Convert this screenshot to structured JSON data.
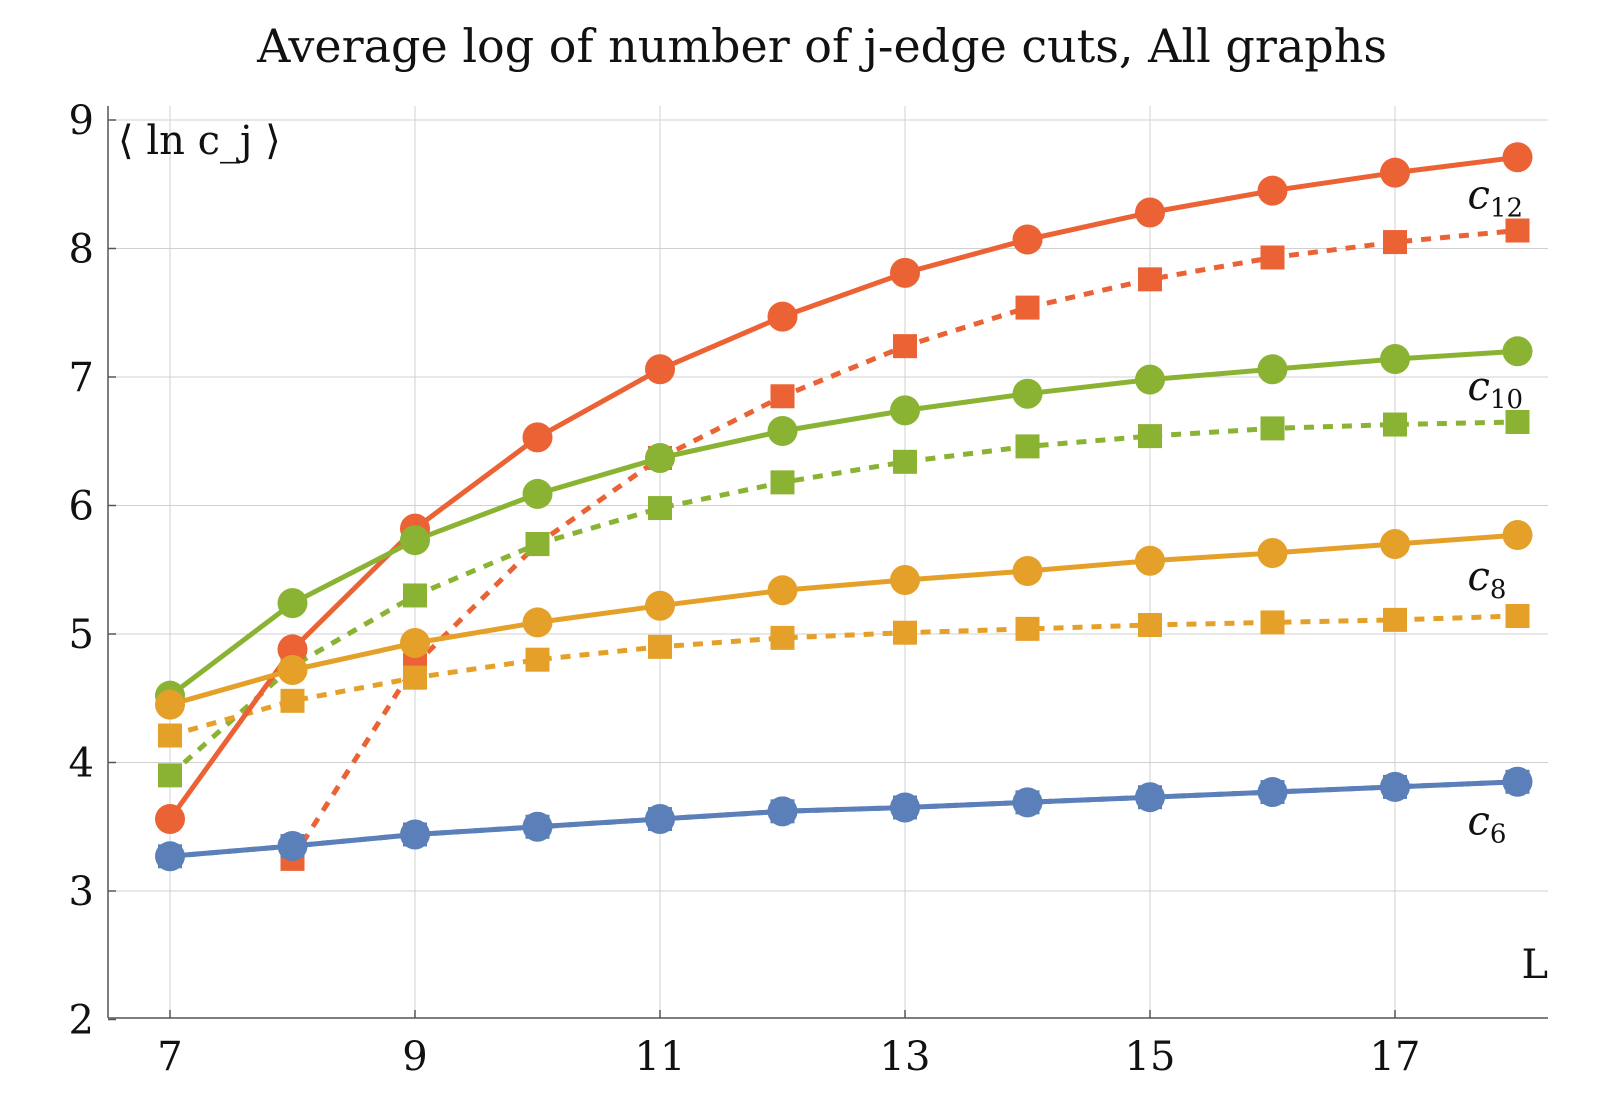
{
  "chart_data": {
    "type": "line",
    "title": "Average log of number of j-edge cuts, All graphs",
    "ylabel": "⟨ ln c_j ⟩",
    "xlabel": "L",
    "x": [
      7,
      8,
      9,
      10,
      11,
      12,
      13,
      14,
      15,
      16,
      17,
      18
    ],
    "xlim": [
      6.5,
      18.5
    ],
    "ylim": [
      2,
      9
    ],
    "xticks": [
      7,
      9,
      11,
      13,
      15,
      17
    ],
    "yticks": [
      2,
      3,
      4,
      5,
      6,
      7,
      8,
      9
    ],
    "grid": true,
    "colors": {
      "c6": "#5b7fb9",
      "c8": "#e4a029",
      "c10": "#8ab334",
      "c12": "#eb6235"
    },
    "series": [
      {
        "key": "c12",
        "line": "solid",
        "marker": "circle",
        "values": [
          3.56,
          4.88,
          5.82,
          6.53,
          7.06,
          7.47,
          7.81,
          8.07,
          8.28,
          8.45,
          8.59,
          8.71
        ]
      },
      {
        "key": "c12",
        "line": "dashed",
        "marker": "square",
        "values": [
          null,
          3.25,
          4.76,
          5.7,
          6.37,
          6.85,
          7.24,
          7.54,
          7.76,
          7.93,
          8.05,
          8.14
        ]
      },
      {
        "key": "c10",
        "line": "solid",
        "marker": "circle",
        "values": [
          4.52,
          5.24,
          5.73,
          6.09,
          6.37,
          6.58,
          6.74,
          6.87,
          6.98,
          7.06,
          7.14,
          7.2
        ]
      },
      {
        "key": "c10",
        "line": "dashed",
        "marker": "square",
        "values": [
          3.9,
          4.75,
          5.3,
          5.7,
          5.98,
          6.18,
          6.34,
          6.46,
          6.54,
          6.6,
          6.63,
          6.65
        ]
      },
      {
        "key": "c8",
        "line": "solid",
        "marker": "circle",
        "values": [
          4.45,
          4.72,
          4.93,
          5.09,
          5.22,
          5.34,
          5.42,
          5.49,
          5.57,
          5.63,
          5.7,
          5.77
        ]
      },
      {
        "key": "c8",
        "line": "dashed",
        "marker": "square",
        "values": [
          4.21,
          4.48,
          4.66,
          4.8,
          4.9,
          4.97,
          5.01,
          5.04,
          5.07,
          5.09,
          5.11,
          5.14
        ]
      },
      {
        "key": "c6",
        "line": "solid",
        "marker": "circle",
        "values": [
          3.27,
          3.35,
          3.44,
          3.5,
          3.56,
          3.62,
          3.65,
          3.69,
          3.73,
          3.77,
          3.81,
          3.85
        ]
      },
      {
        "key": "c6",
        "line": "dashed",
        "marker": "square",
        "values": [
          3.27,
          3.35,
          3.44,
          3.5,
          3.56,
          3.62,
          3.65,
          3.69,
          3.73,
          3.77,
          3.81,
          3.85
        ]
      }
    ],
    "annotations": [
      {
        "base": "c",
        "sub": "12",
        "series": "c12",
        "at_x": 18,
        "y": 8.42
      },
      {
        "base": "c",
        "sub": "10",
        "series": "c10",
        "at_x": 18,
        "y": 6.93
      },
      {
        "base": "c",
        "sub": "8",
        "series": "c8",
        "at_x": 18,
        "y": 5.45
      },
      {
        "base": "c",
        "sub": "6",
        "series": "c6",
        "at_x": 18,
        "y": 3.55
      }
    ]
  }
}
